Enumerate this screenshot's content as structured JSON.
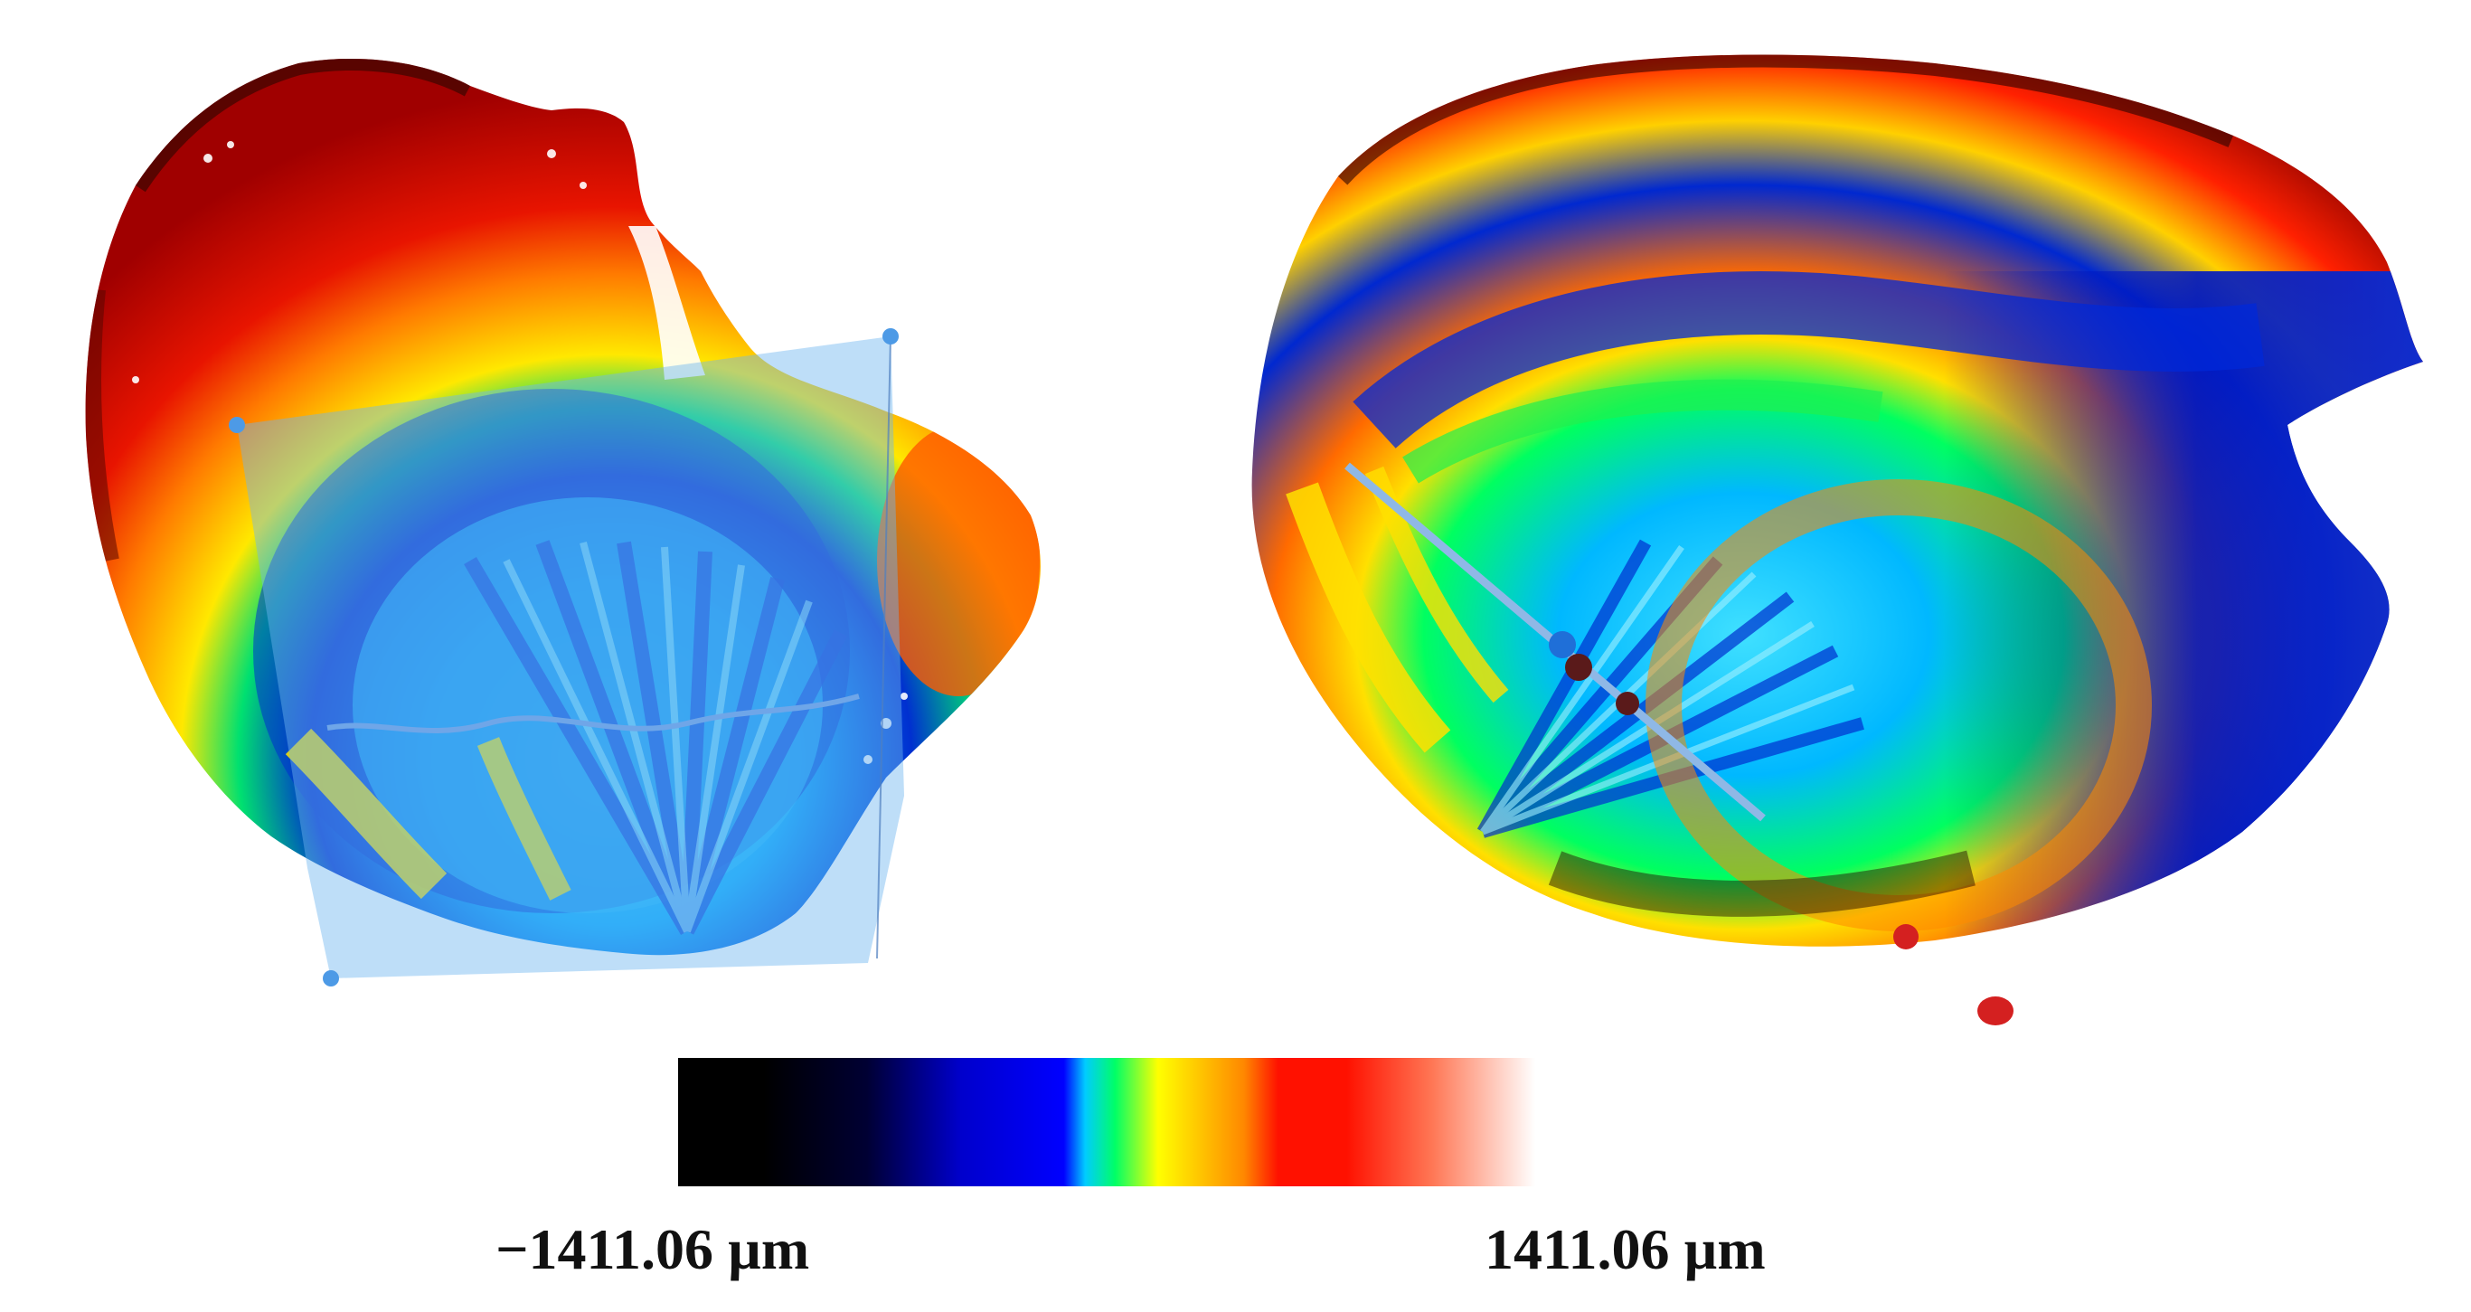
{
  "colorbar": {
    "min_label": "−1411.06 µm",
    "max_label": "1411.06 µm",
    "min_value": -1411.06,
    "max_value": 1411.06,
    "unit": "µm",
    "stops": [
      {
        "offset": 0.0,
        "color": "#000000"
      },
      {
        "offset": 0.1,
        "color": "#000000"
      },
      {
        "offset": 0.22,
        "color": "#000033"
      },
      {
        "offset": 0.33,
        "color": "#0000cc"
      },
      {
        "offset": 0.45,
        "color": "#0000ff"
      },
      {
        "offset": 0.475,
        "color": "#00ccff"
      },
      {
        "offset": 0.51,
        "color": "#00ff66"
      },
      {
        "offset": 0.56,
        "color": "#ffff00"
      },
      {
        "offset": 0.66,
        "color": "#ff8800"
      },
      {
        "offset": 0.7,
        "color": "#ff1100"
      },
      {
        "offset": 0.78,
        "color": "#ff1100"
      },
      {
        "offset": 0.88,
        "color": "#ff7755"
      },
      {
        "offset": 1.0,
        "color": "#ffffff"
      }
    ]
  },
  "colors": {
    "selection_fill": "#6fb6f0",
    "selection_handle": "#4d9ae6",
    "section_line": "#8fb8e6",
    "marker_dark": "#5a1a1a",
    "marker_red": "#d42020"
  }
}
